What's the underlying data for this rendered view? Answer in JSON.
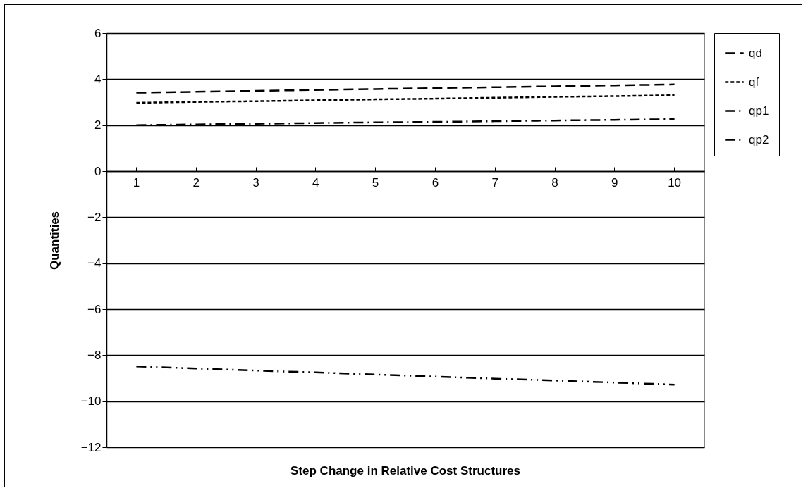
{
  "chart_data": {
    "type": "line",
    "xlabel": "Step Change in Relative Cost Structures",
    "ylabel": "Quantities",
    "categories": [
      "1",
      "2",
      "3",
      "4",
      "5",
      "6",
      "7",
      "8",
      "9",
      "10"
    ],
    "series": [
      {
        "name": "qd",
        "color": "#000000",
        "line_style": "dashed",
        "values": [
          3.41,
          3.45,
          3.49,
          3.53,
          3.57,
          3.61,
          3.65,
          3.69,
          3.73,
          3.77
        ]
      },
      {
        "name": "qf",
        "color": "#000000",
        "line_style": "dotted",
        "values": [
          2.97,
          3.01,
          3.04,
          3.08,
          3.12,
          3.15,
          3.19,
          3.23,
          3.26,
          3.3
        ]
      },
      {
        "name": "qp1",
        "color": "#000000",
        "line_style": "dashdot",
        "values": [
          2.0,
          2.03,
          2.06,
          2.09,
          2.12,
          2.14,
          2.17,
          2.2,
          2.23,
          2.26
        ]
      },
      {
        "name": "qp2",
        "color": "#000000",
        "line_style": "dashdotdot",
        "values": [
          -8.49,
          -8.58,
          -8.67,
          -8.75,
          -8.84,
          -8.93,
          -9.02,
          -9.1,
          -9.19,
          -9.28
        ]
      }
    ],
    "ylim": [
      -12,
      6
    ],
    "yticks": [
      -12,
      -10,
      -8,
      -6,
      -4,
      -2,
      0,
      2,
      4,
      6
    ],
    "grid": "y",
    "legend": "right"
  }
}
